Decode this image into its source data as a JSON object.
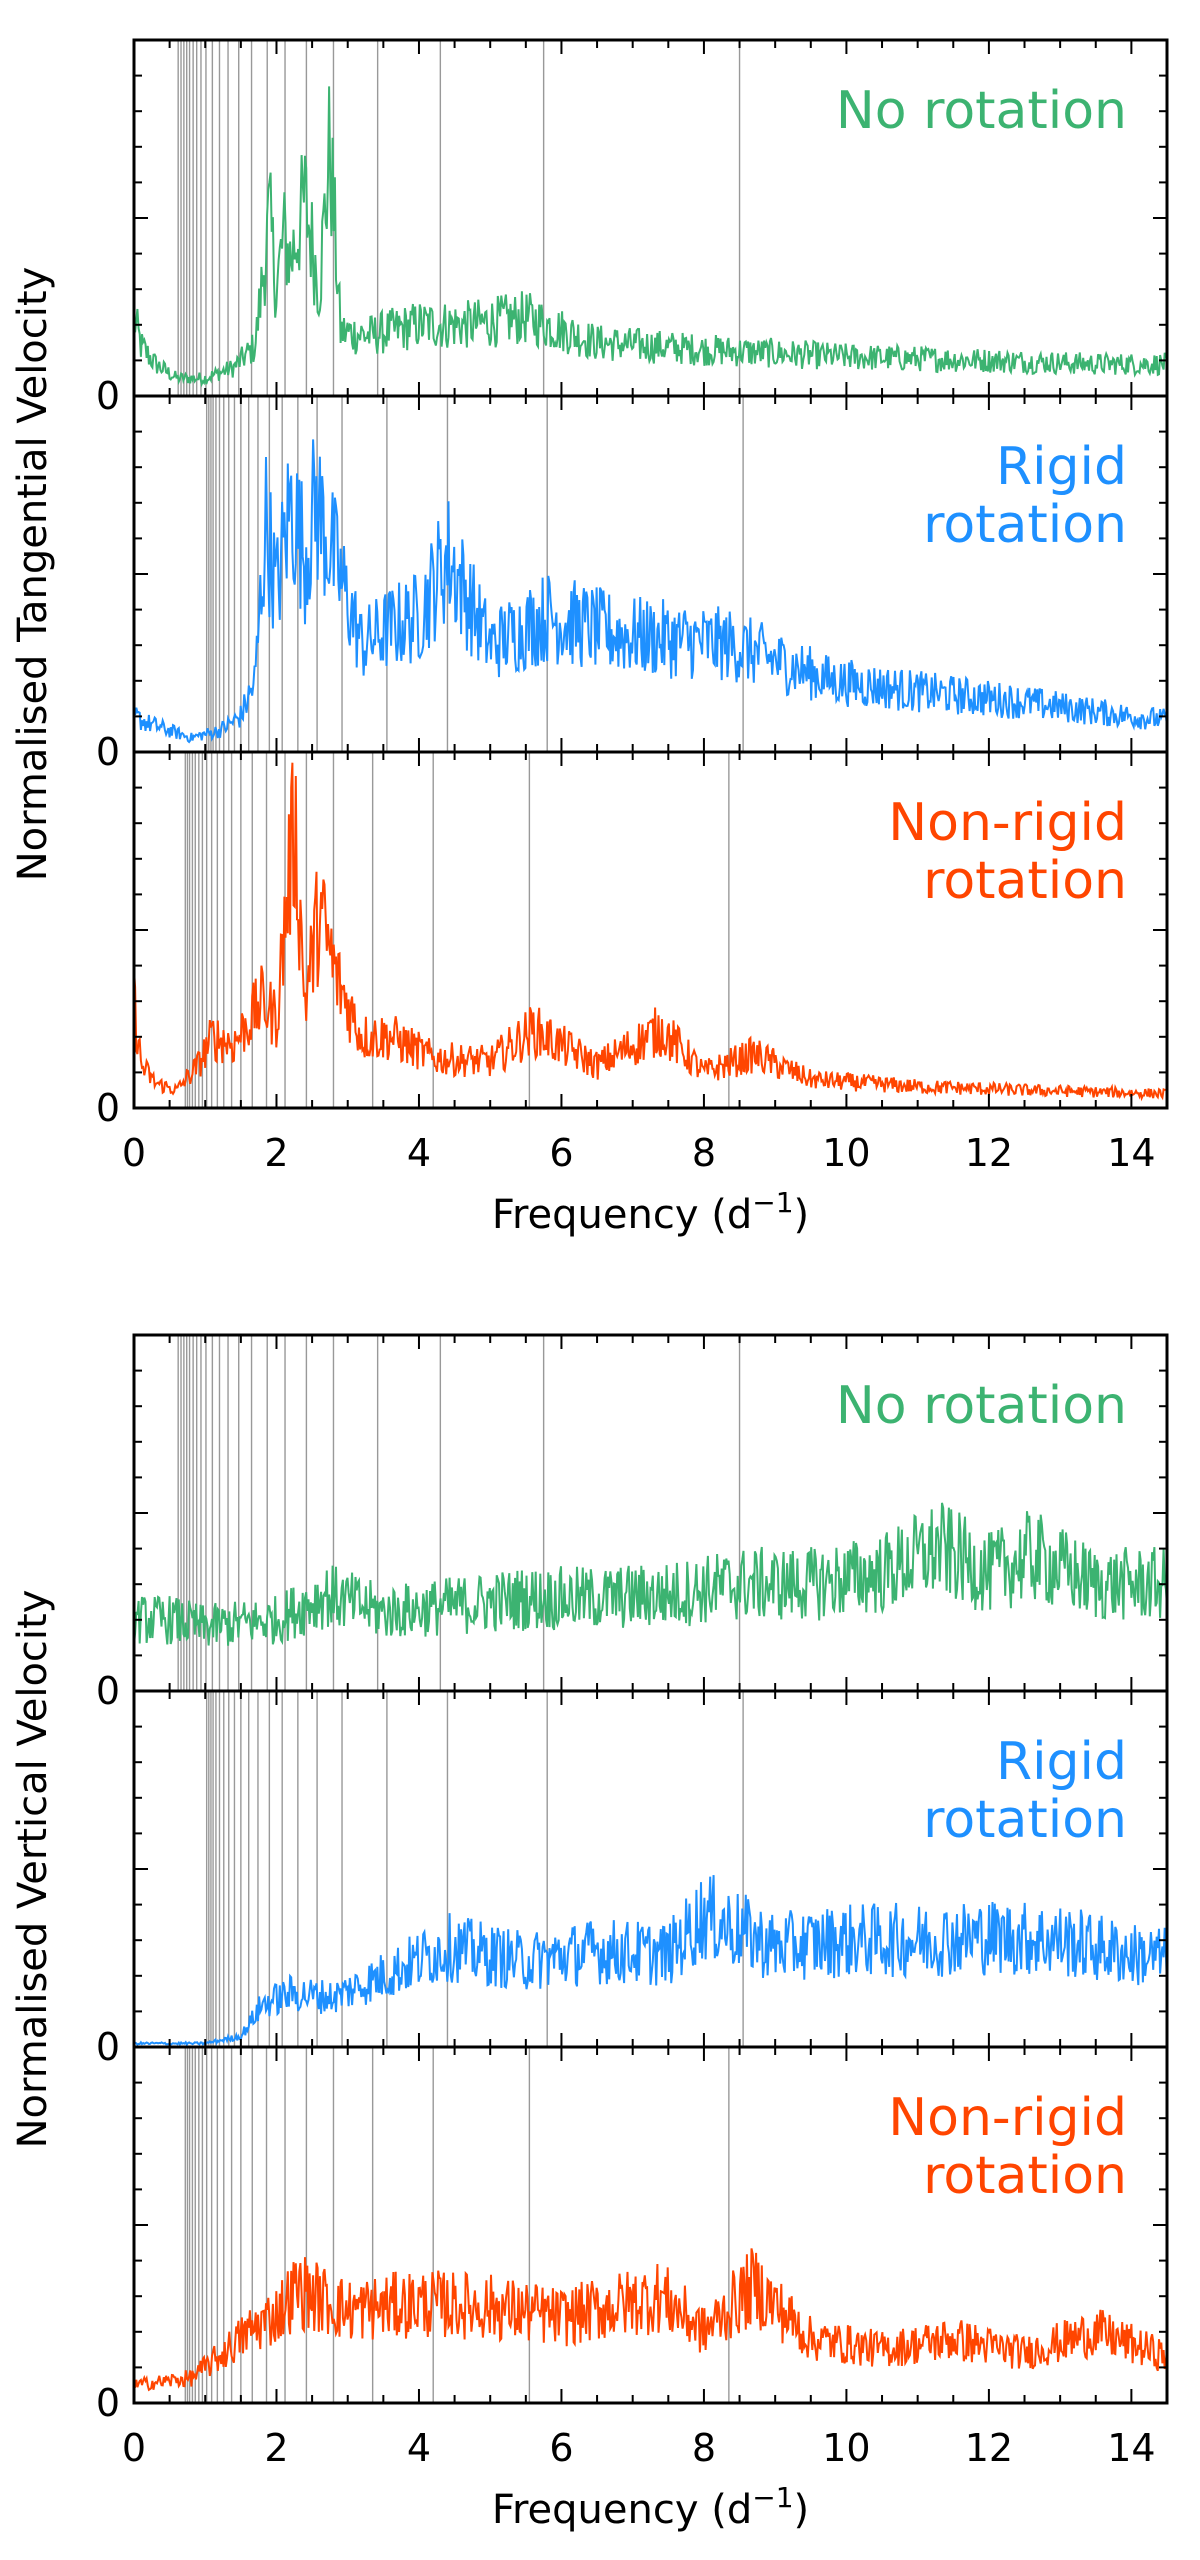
{
  "colors": {
    "no_rotation": "#3cb371",
    "rigid_rotation": "#1e90ff",
    "non_rigid_rotation": "#ff4500",
    "mode_lines": "#999999",
    "axes": "#000000"
  },
  "chart_data": [
    {
      "type": "line",
      "title": "",
      "ylabel": "Normalised Tangential Velocity",
      "xlabel": "Frequency (d",
      "xlabel_superscript": "−1",
      "xlabel_close": ")",
      "xlim": [
        0,
        14.5
      ],
      "x_ticks": [
        0,
        2,
        4,
        6,
        8,
        10,
        12,
        14
      ],
      "x_tick_labels": [
        "0",
        "2",
        "4",
        "6",
        "8",
        "10",
        "12",
        "14"
      ],
      "panels": [
        {
          "label_lines": [
            "No rotation"
          ],
          "color_key": "no_rotation",
          "ylim": [
            0,
            1
          ],
          "y_tick_label": "0",
          "mode_frequencies": [
            0.62,
            0.66,
            0.7,
            0.74,
            0.78,
            0.83,
            0.88,
            0.94,
            1.01,
            1.1,
            1.2,
            1.32,
            1.47,
            1.65,
            1.87,
            2.12,
            2.42,
            2.8,
            3.42,
            4.3,
            5.75,
            8.5
          ],
          "series": {
            "freq": [
              0,
              0.1,
              0.3,
              0.6,
              1.0,
              1.4,
              1.7,
              1.9,
              2.0,
              2.1,
              2.2,
              2.4,
              2.6,
              2.75,
              2.9,
              3.3,
              4.0,
              4.7,
              5.5,
              6.5,
              8.0,
              10.0,
              12.0,
              13.5,
              14.5
            ],
            "value": [
              0.22,
              0.14,
              0.09,
              0.05,
              0.05,
              0.08,
              0.14,
              0.5,
              0.3,
              0.45,
              0.38,
              0.55,
              0.3,
              0.7,
              0.18,
              0.17,
              0.2,
              0.2,
              0.22,
              0.15,
              0.13,
              0.11,
              0.1,
              0.09,
              0.09
            ]
          }
        },
        {
          "label_lines": [
            "Rigid",
            "rotation"
          ],
          "color_key": "rigid_rotation",
          "ylim": [
            0,
            1
          ],
          "y_tick_label": "0",
          "mode_frequencies": [
            1.02,
            1.05,
            1.08,
            1.11,
            1.15,
            1.2,
            1.26,
            1.33,
            1.41,
            1.5,
            1.61,
            1.74,
            1.9,
            2.08,
            2.3,
            2.57,
            2.92,
            3.55,
            4.4,
            5.8,
            8.55
          ],
          "series": {
            "freq": [
              0,
              0.2,
              0.5,
              0.8,
              1.2,
              1.5,
              1.7,
              1.85,
              2.0,
              2.2,
              2.4,
              2.55,
              2.8,
              3.2,
              3.6,
              4.0,
              4.4,
              5.0,
              5.8,
              6.8,
              8.4,
              9.8,
              11.0,
              12.5,
              14.0,
              14.5
            ],
            "value": [
              0.1,
              0.08,
              0.06,
              0.04,
              0.06,
              0.1,
              0.2,
              0.65,
              0.45,
              0.7,
              0.55,
              0.7,
              0.55,
              0.3,
              0.35,
              0.38,
              0.55,
              0.3,
              0.38,
              0.33,
              0.3,
              0.2,
              0.17,
              0.14,
              0.1,
              0.09
            ]
          }
        },
        {
          "label_lines": [
            "Non-rigid",
            "rotation"
          ],
          "color_key": "non_rigid_rotation",
          "ylim": [
            0,
            1
          ],
          "y_tick_label": "0",
          "mode_frequencies": [
            0.72,
            0.75,
            0.78,
            0.82,
            0.86,
            0.91,
            0.96,
            1.02,
            1.09,
            1.17,
            1.26,
            1.37,
            1.5,
            1.66,
            1.86,
            2.12,
            2.42,
            2.8,
            3.35,
            4.2,
            5.55,
            8.35
          ],
          "series": {
            "freq": [
              0,
              0.1,
              0.3,
              0.6,
              0.9,
              1.1,
              1.4,
              1.8,
              2.0,
              2.25,
              2.4,
              2.6,
              2.85,
              3.2,
              3.6,
              4.2,
              5.0,
              5.6,
              6.5,
              7.4,
              8.0,
              8.7,
              9.5,
              11.0,
              12.5,
              14.5
            ],
            "value": [
              0.3,
              0.12,
              0.07,
              0.05,
              0.12,
              0.2,
              0.18,
              0.3,
              0.25,
              0.82,
              0.3,
              0.55,
              0.36,
              0.2,
              0.2,
              0.14,
              0.13,
              0.22,
              0.12,
              0.22,
              0.1,
              0.15,
              0.08,
              0.06,
              0.05,
              0.04
            ]
          }
        }
      ]
    },
    {
      "type": "line",
      "title": "",
      "ylabel": "Normalised Vertical Velocity",
      "xlabel": "Frequency (d",
      "xlabel_superscript": "−1",
      "xlabel_close": ")",
      "xlim": [
        0,
        14.5
      ],
      "x_ticks": [
        0,
        2,
        4,
        6,
        8,
        10,
        12,
        14
      ],
      "x_tick_labels": [
        "0",
        "2",
        "4",
        "6",
        "8",
        "10",
        "12",
        "14"
      ],
      "panels": [
        {
          "label_lines": [
            "No rotation"
          ],
          "color_key": "no_rotation",
          "ylim": [
            0,
            1
          ],
          "y_tick_label": "0",
          "mode_frequencies": [
            0.62,
            0.66,
            0.7,
            0.74,
            0.78,
            0.83,
            0.88,
            0.94,
            1.01,
            1.1,
            1.2,
            1.32,
            1.47,
            1.65,
            1.87,
            2.12,
            2.42,
            2.8,
            3.42,
            4.3,
            5.75,
            8.5
          ],
          "series": {
            "freq": [
              0,
              0.5,
              1.0,
              1.5,
              2.0,
              2.7,
              3.5,
              4.5,
              5.5,
              6.5,
              7.5,
              8.5,
              9.5,
              10.5,
              11.3,
              12.0,
              12.6,
              13.5,
              14.5
            ],
            "value": [
              0.2,
              0.2,
              0.18,
              0.19,
              0.2,
              0.27,
              0.22,
              0.24,
              0.26,
              0.26,
              0.27,
              0.3,
              0.3,
              0.33,
              0.4,
              0.33,
              0.38,
              0.3,
              0.3
            ]
          }
        },
        {
          "label_lines": [
            "Rigid",
            "rotation"
          ],
          "color_key": "rigid_rotation",
          "ylim": [
            0,
            1
          ],
          "y_tick_label": "0",
          "mode_frequencies": [
            1.02,
            1.05,
            1.08,
            1.11,
            1.15,
            1.2,
            1.26,
            1.33,
            1.41,
            1.5,
            1.61,
            1.74,
            1.9,
            2.08,
            2.3,
            2.57,
            2.92,
            3.55,
            4.4,
            5.8,
            8.55
          ],
          "series": {
            "freq": [
              0,
              0.5,
              1.0,
              1.5,
              1.8,
              2.2,
              2.8,
              3.5,
              4.4,
              5.5,
              6.5,
              7.5,
              8.0,
              9.0,
              10.0,
              11.0,
              12.0,
              13.0,
              14.0,
              14.5
            ],
            "value": [
              0.01,
              0.01,
              0.01,
              0.03,
              0.12,
              0.15,
              0.14,
              0.2,
              0.28,
              0.24,
              0.27,
              0.26,
              0.37,
              0.28,
              0.3,
              0.3,
              0.31,
              0.3,
              0.26,
              0.25
            ]
          }
        },
        {
          "label_lines": [
            "Non-rigid",
            "rotation"
          ],
          "color_key": "non_rigid_rotation",
          "ylim": [
            0,
            1
          ],
          "y_tick_label": "0",
          "mode_frequencies": [
            0.72,
            0.75,
            0.78,
            0.82,
            0.86,
            0.91,
            0.96,
            1.02,
            1.09,
            1.17,
            1.26,
            1.37,
            1.5,
            1.66,
            1.86,
            2.12,
            2.42,
            2.8,
            3.35,
            4.2,
            5.55,
            8.35
          ],
          "series": {
            "freq": [
              0,
              0.4,
              0.8,
              1.2,
              1.6,
              2.0,
              2.3,
              3.0,
              4.0,
              5.0,
              6.0,
              7.4,
              8.0,
              8.7,
              9.5,
              10.5,
              11.5,
              12.5,
              13.5,
              14.5
            ],
            "value": [
              0.05,
              0.06,
              0.07,
              0.13,
              0.2,
              0.25,
              0.32,
              0.26,
              0.28,
              0.27,
              0.24,
              0.3,
              0.2,
              0.33,
              0.18,
              0.15,
              0.18,
              0.14,
              0.2,
              0.13
            ]
          }
        }
      ]
    }
  ]
}
